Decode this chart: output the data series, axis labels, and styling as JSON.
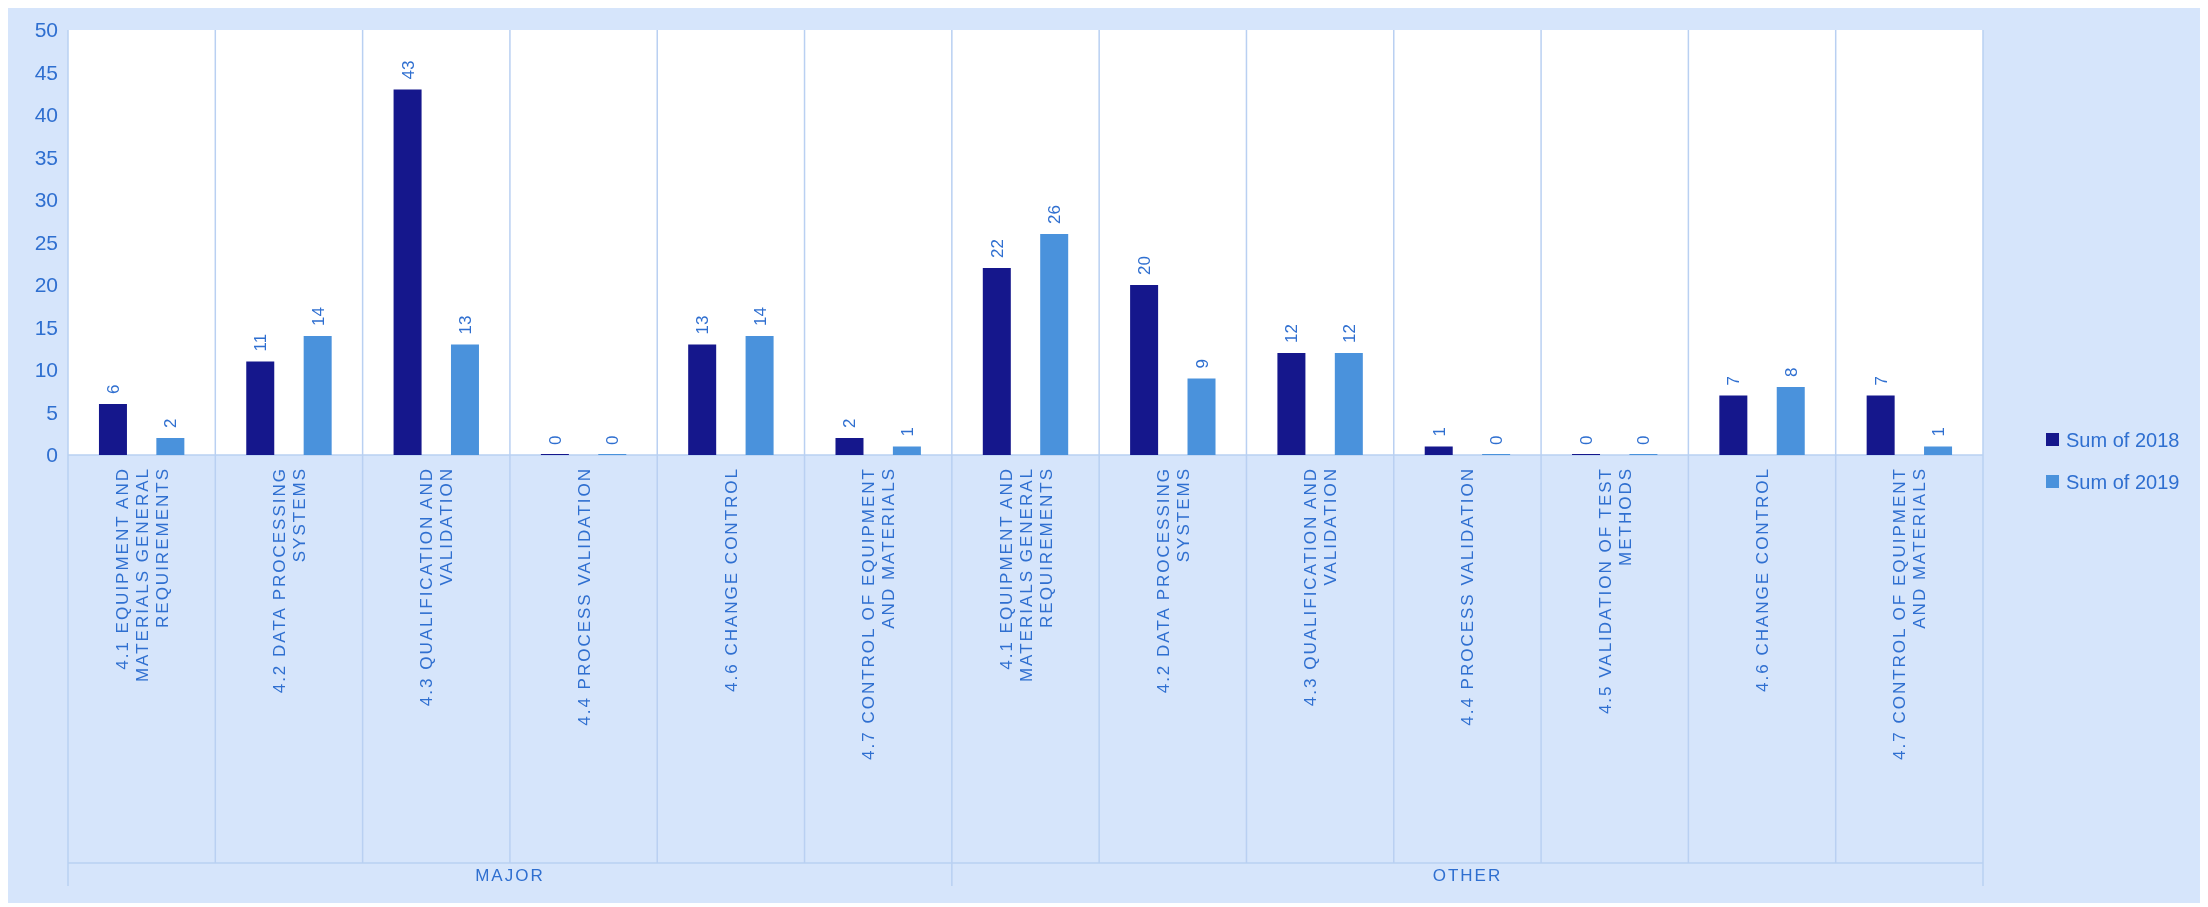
{
  "chart_data": {
    "type": "bar",
    "categories": [
      "4.1 EQUIPMENT AND MATERIALS GENERAL REQUIREMENTS",
      "4.2 DATA PROCESSING SYSTEMS",
      "4.3 QUALIFICATION AND VALIDATION",
      "4.4 PROCESS VALIDATION",
      "4.6 CHANGE CONTROL",
      "4.7 CONTROL OF EQUIPMENT AND MATERIALS",
      "4.1 EQUIPMENT AND MATERIALS GENERAL REQUIREMENTS",
      "4.2 DATA PROCESSING SYSTEMS",
      "4.3 QUALIFICATION AND VALIDATION",
      "4.4 PROCESS VALIDATION",
      "4.5 VALIDATION OF TEST METHODS",
      "4.6 CHANGE CONTROL",
      "4.7 CONTROL OF EQUIPMENT AND MATERIALS"
    ],
    "series": [
      {
        "name": "Sum of 2018",
        "color": "#15178c",
        "values": [
          6,
          11,
          43,
          0,
          13,
          2,
          22,
          20,
          12,
          1,
          0,
          7,
          7
        ]
      },
      {
        "name": "Sum of 2019",
        "color": "#4a92dc",
        "values": [
          2,
          14,
          13,
          0,
          14,
          1,
          26,
          9,
          12,
          0,
          0,
          8,
          1
        ]
      }
    ],
    "ylim": [
      0,
      50
    ],
    "yticks": [
      0,
      5,
      10,
      15,
      20,
      25,
      30,
      35,
      40,
      45,
      50
    ],
    "grid": "x",
    "legend": "right",
    "data_labels": true,
    "annotations": [
      "MAJOR",
      "OTHER"
    ]
  }
}
